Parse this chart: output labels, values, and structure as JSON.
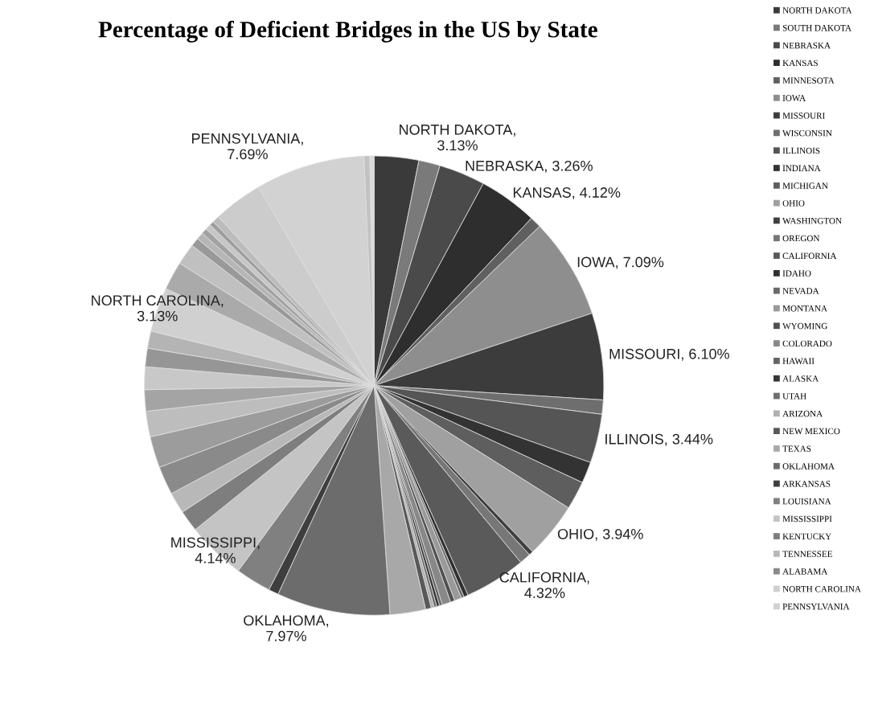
{
  "chart_data": {
    "type": "pie",
    "title": "Percentage of Deficient Bridges in the US by State",
    "categories": [
      "NORTH DAKOTA",
      "SOUTH DAKOTA",
      "NEBRASKA",
      "KANSAS",
      "MINNESOTA",
      "IOWA",
      "MISSOURI",
      "WISCONSIN",
      "ILLINOIS",
      "INDIANA",
      "MICHIGAN",
      "OHIO",
      "WASHINGTON",
      "OREGON",
      "CALIFORNIA",
      "IDAHO",
      "NEVADA",
      "MONTANA",
      "WYOMING",
      "COLORADO",
      "HAWAII",
      "ALASKA",
      "UTAH",
      "ARIZONA",
      "NEW MEXICO",
      "TEXAS",
      "OKLAHOMA",
      "ARKANSAS",
      "LOUISIANA",
      "MISSISSIPPI",
      "KENTUCKY",
      "TENNESSEE",
      "ALABAMA",
      null,
      null,
      null,
      null,
      null,
      null,
      "NORTH CAROLINA",
      null,
      null,
      null,
      null,
      null,
      null,
      null,
      null,
      null,
      "PENNSYLVANIA",
      null,
      null
    ],
    "values": [
      3.13,
      1.5,
      3.26,
      4.12,
      0.8,
      7.09,
      6.1,
      1.0,
      3.44,
      1.5,
      2.0,
      3.94,
      0.3,
      0.8,
      4.32,
      0.3,
      0.2,
      0.5,
      0.3,
      0.6,
      0.2,
      0.2,
      0.2,
      0.2,
      0.4,
      2.5,
      7.97,
      0.7,
      2.5,
      4.14,
      1.5,
      1.5,
      2.0,
      2.2,
      1.8,
      1.5,
      1.6,
      1.3,
      1.2,
      3.13,
      2.0,
      1.5,
      0.6,
      0.5,
      0.4,
      0.4,
      0.3,
      0.5,
      3.47,
      7.69,
      0.4,
      0.3
    ],
    "value_labels": [
      "NORTH DAKOTA,\n3.13%",
      null,
      "NEBRASKA, 3.26%",
      "KANSAS, 4.12%",
      null,
      "IOWA, 7.09%",
      "MISSOURI, 6.10%",
      null,
      "ILLINOIS, 3.44%",
      null,
      null,
      "OHIO, 3.94%",
      null,
      null,
      "CALIFORNIA,\n4.32%",
      null,
      null,
      null,
      null,
      null,
      null,
      null,
      null,
      null,
      null,
      null,
      "OKLAHOMA,\n7.97%",
      null,
      null,
      "MISSISSIPPI,\n4.14%",
      null,
      null,
      null,
      null,
      null,
      null,
      null,
      null,
      null,
      "NORTH CAROLINA,\n3.13%",
      null,
      null,
      null,
      null,
      null,
      null,
      null,
      null,
      null,
      "PENNSYLVANIA,\n7.69%",
      null,
      null
    ],
    "colors": [
      "#3a3a3a",
      "#7a7a7a",
      "#4a4a4a",
      "#2e2e2e",
      "#606060",
      "#8e8e8e",
      "#3c3c3c",
      "#6e6e6e",
      "#555555",
      "#333333",
      "#5e5e5e",
      "#a0a0a0",
      "#404040",
      "#777777",
      "#5a5a5a",
      "#2f2f2f",
      "#6a6a6a",
      "#9a9a9a",
      "#505050",
      "#888888",
      "#656565",
      "#353535",
      "#707070",
      "#b0b0b0",
      "#585858",
      "#a8a8a8",
      "#6c6c6c",
      "#3e3e3e",
      "#808080",
      "#c4c4c4",
      "#7e7e7e",
      "#b8b8b8",
      "#8a8a8a",
      "#9c9c9c",
      "#bdbdbd",
      "#a4a4a4",
      "#c8c8c8",
      "#969696",
      "#b4b4b4",
      "#d0d0d0",
      "#aaaaaa",
      "#c0c0c0",
      "#999999",
      "#b6b6b6",
      "#a2a2a2",
      "#c6c6c6",
      "#9e9e9e",
      "#bcbcbc",
      "#cccccc",
      "#d2d2d2",
      "#c2c2c2",
      "#dadada"
    ],
    "legend": "right"
  }
}
